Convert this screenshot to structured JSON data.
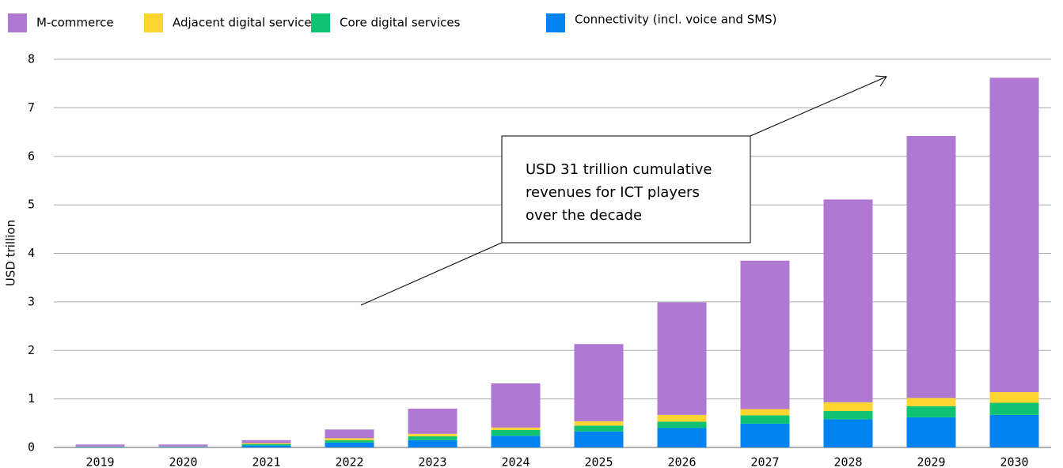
{
  "chart_data": {
    "type": "stacked_bar",
    "ylabel": "USD trillion",
    "categories": [
      "2019",
      "2020",
      "2021",
      "2022",
      "2023",
      "2024",
      "2025",
      "2026",
      "2027",
      "2028",
      "2029",
      "2030"
    ],
    "series": [
      {
        "name": "Connectivity (incl. voice and SMS)",
        "color": "#0082f0",
        "values": [
          0.01,
          0.01,
          0.04,
          0.1,
          0.15,
          0.24,
          0.33,
          0.4,
          0.49,
          0.58,
          0.62,
          0.67
        ]
      },
      {
        "name": "Core digital services",
        "color": "#0fc373",
        "values": [
          0.005,
          0.005,
          0.03,
          0.05,
          0.08,
          0.12,
          0.12,
          0.13,
          0.17,
          0.17,
          0.23,
          0.25
        ]
      },
      {
        "name": "Adjacent digital services",
        "color": "#fcd530",
        "values": [
          0.005,
          0.005,
          0.02,
          0.04,
          0.05,
          0.05,
          0.09,
          0.14,
          0.13,
          0.18,
          0.17,
          0.22
        ]
      },
      {
        "name": "M-commerce",
        "color": "#af78d2",
        "values": [
          0.04,
          0.04,
          0.06,
          0.18,
          0.52,
          0.91,
          1.59,
          2.32,
          3.06,
          4.18,
          5.4,
          6.48
        ]
      }
    ],
    "legend_order": [
      3,
      2,
      1,
      0
    ],
    "ylim": [
      0,
      8
    ],
    "yticks": [
      0,
      1,
      2,
      3,
      4,
      5,
      6,
      7,
      8
    ],
    "grid": true,
    "annotation": [
      "USD 31 trillion cumulative",
      "revenues for ICT players",
      "over the decade"
    ]
  }
}
